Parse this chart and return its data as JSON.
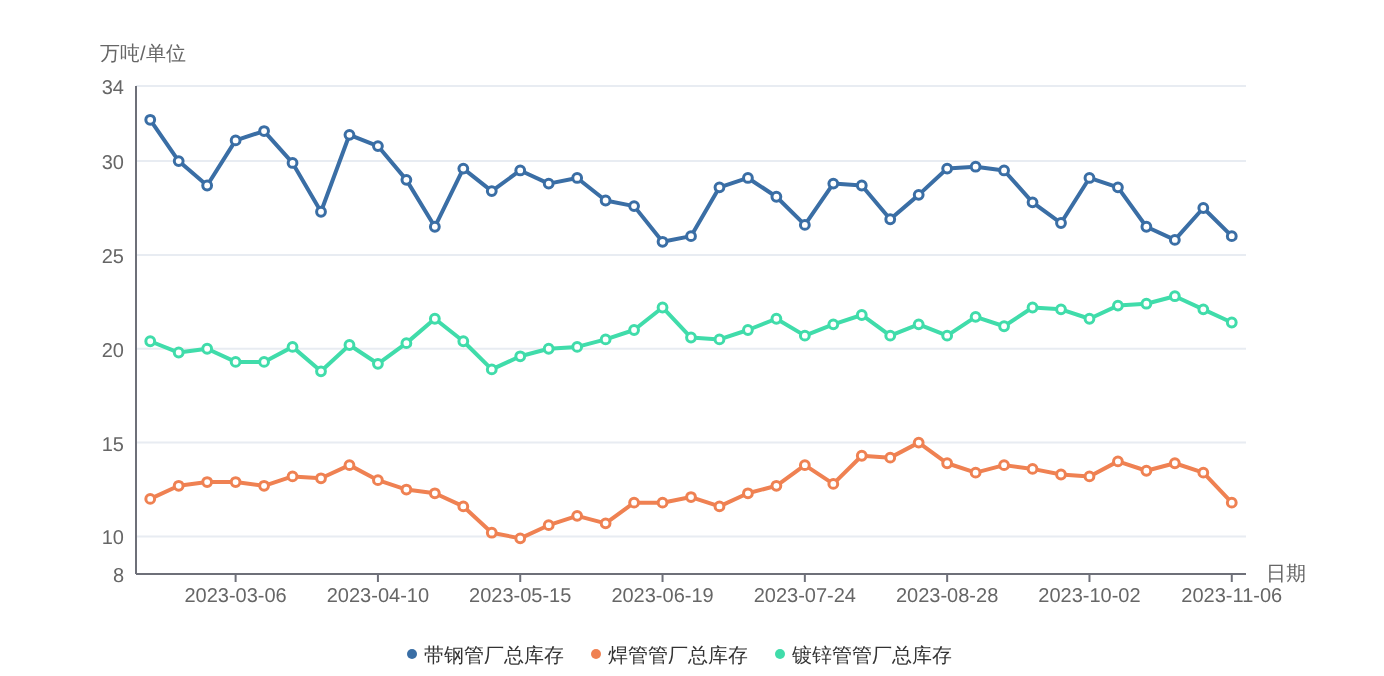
{
  "chart_data": {
    "type": "line",
    "ylabel": "万吨/单位",
    "xlabel": "日期",
    "categories": [
      null,
      null,
      null,
      "2023-03-06",
      null,
      null,
      null,
      null,
      "2023-04-10",
      null,
      null,
      null,
      null,
      "2023-05-15",
      null,
      null,
      null,
      null,
      "2023-06-19",
      null,
      null,
      null,
      null,
      "2023-07-24",
      null,
      null,
      null,
      null,
      "2023-08-28",
      null,
      null,
      null,
      null,
      "2023-10-02",
      null,
      null,
      null,
      null,
      "2023-11-06"
    ],
    "ylim": [
      8,
      34
    ],
    "yticks": [
      8,
      10,
      15,
      20,
      25,
      30,
      34
    ],
    "grid": "y",
    "legend": "bottom",
    "marker": "circle",
    "line_style": "solid",
    "series": [
      {
        "name": "带钢管厂总库存",
        "color": "#3a6ea5",
        "values": [
          32.2,
          30.0,
          28.7,
          31.1,
          31.6,
          29.9,
          27.3,
          31.4,
          30.8,
          29.0,
          26.5,
          29.6,
          28.4,
          29.5,
          28.8,
          29.1,
          27.9,
          27.6,
          25.7,
          26.0,
          28.6,
          29.1,
          28.1,
          26.6,
          28.8,
          28.7,
          26.9,
          28.2,
          29.6,
          29.7,
          29.5,
          27.8,
          26.7,
          29.1,
          28.6,
          26.5,
          25.8,
          27.5,
          26.0
        ]
      },
      {
        "name": "焊管管厂总库存",
        "color": "#ef8152",
        "values": [
          12.0,
          12.7,
          12.9,
          12.9,
          12.7,
          13.2,
          13.1,
          13.8,
          13.0,
          12.5,
          12.3,
          11.6,
          10.2,
          9.9,
          10.6,
          11.1,
          10.7,
          11.8,
          11.8,
          12.1,
          11.6,
          12.3,
          12.7,
          13.8,
          12.8,
          14.3,
          14.2,
          15.0,
          13.9,
          13.4,
          13.8,
          13.6,
          13.3,
          13.2,
          14.0,
          13.5,
          13.9,
          13.4,
          11.8
        ]
      },
      {
        "name": "镀锌管管厂总库存",
        "color": "#40dcaa",
        "values": [
          20.4,
          19.8,
          20.0,
          19.3,
          19.3,
          20.1,
          18.8,
          20.2,
          19.2,
          20.3,
          21.6,
          20.4,
          18.9,
          19.6,
          20.0,
          20.1,
          20.5,
          21.0,
          22.2,
          20.6,
          20.5,
          21.0,
          21.6,
          20.7,
          21.3,
          21.8,
          20.7,
          21.3,
          20.7,
          21.7,
          21.2,
          22.2,
          22.1,
          21.6,
          22.3,
          22.4,
          22.8,
          22.1,
          21.4
        ]
      }
    ]
  }
}
